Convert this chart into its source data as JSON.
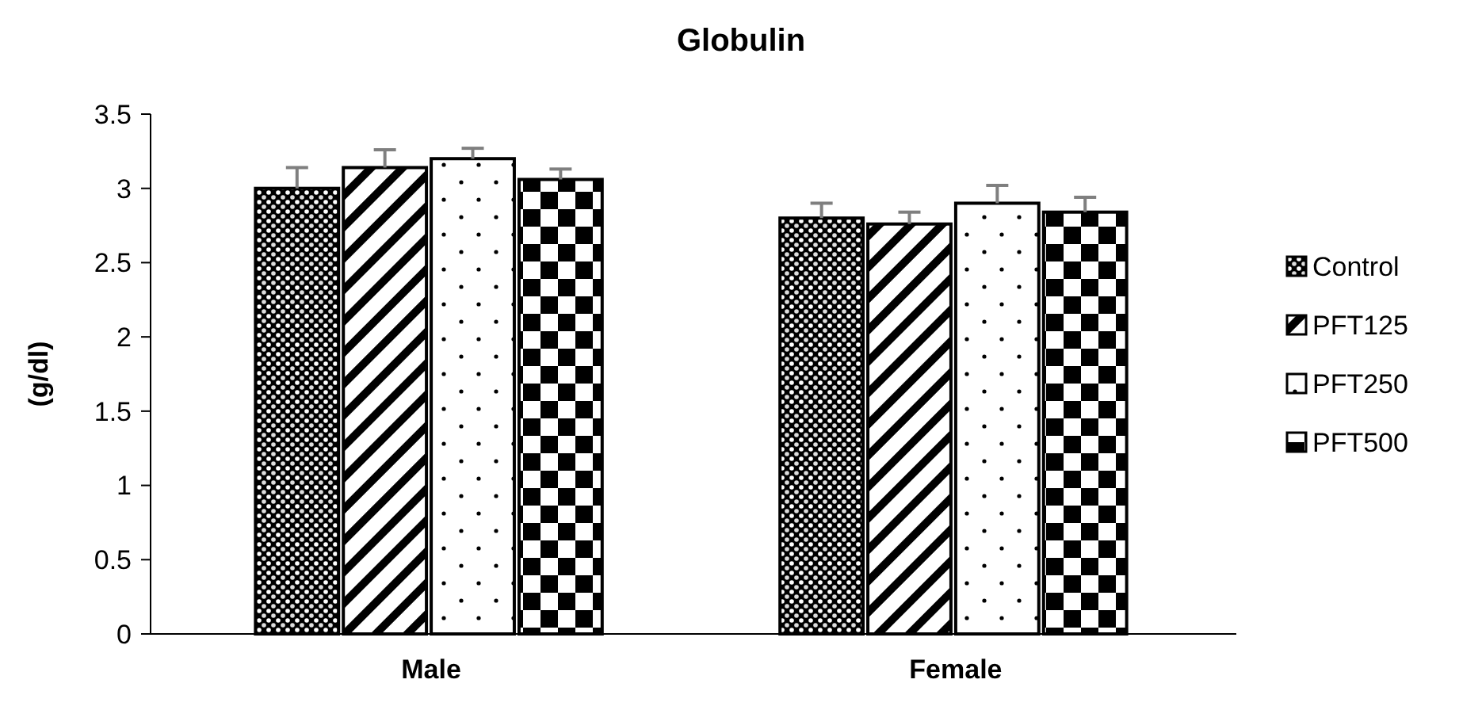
{
  "chart_data": {
    "type": "bar",
    "title": "Globulin",
    "ylabel": "(g/dl)",
    "categories": [
      "Male",
      "Female"
    ],
    "series": [
      {
        "name": "Control",
        "color": "#000000",
        "values": [
          3.0,
          2.8
        ],
        "errors": [
          0.14,
          0.1
        ]
      },
      {
        "name": "PFT125",
        "color": "#000000",
        "values": [
          3.14,
          2.76
        ],
        "errors": [
          0.12,
          0.08
        ]
      },
      {
        "name": "PFT250",
        "color": "#000000",
        "values": [
          3.2,
          2.9
        ],
        "errors": [
          0.07,
          0.12
        ]
      },
      {
        "name": "PFT500",
        "color": "#000000",
        "values": [
          3.06,
          2.84
        ],
        "errors": [
          0.07,
          0.1
        ]
      }
    ],
    "ylim": [
      0,
      3.5
    ],
    "yticks": [
      0,
      0.5,
      1,
      1.5,
      2,
      2.5,
      3,
      3.5
    ],
    "grid": false,
    "legend": "right"
  }
}
